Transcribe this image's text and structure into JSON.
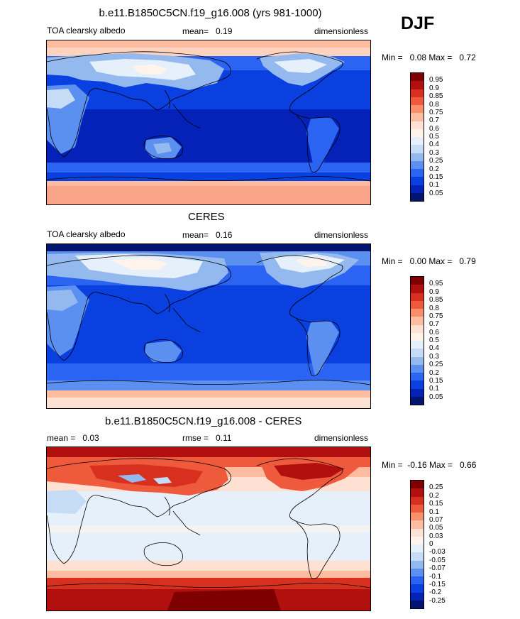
{
  "season": "DJF",
  "panels": [
    {
      "id": "model",
      "title": "b.e11.B1850C5CN.f19_g16.008 (yrs 981-1000)",
      "left_label": "TOA clearsky albedo",
      "center_label": "mean=   0.19",
      "right_label": "dimensionless",
      "minmax": "Min =   0.08 Max =   0.72",
      "colorbar": {
        "labels": [
          "0.95",
          "0.9",
          "0.85",
          "0.8",
          "0.75",
          "0.7",
          "0.6",
          "0.5",
          "0.4",
          "0.3",
          "0.25",
          "0.2",
          "0.15",
          "0.1",
          "0.05"
        ],
        "colors": [
          "#7f0000",
          "#b20f0f",
          "#d7301f",
          "#ef5a3c",
          "#f98e6b",
          "#fdbba0",
          "#fee1d3",
          "#fff3ec",
          "#e6f0fb",
          "#c6dbf5",
          "#93b9ee",
          "#5b8ff0",
          "#2b63f2",
          "#0a3fe0",
          "#0522b8",
          "#001470"
        ]
      },
      "chart_data": {
        "type": "heatmap",
        "title": "b.e11.B1850C5CN.f19_g16.008 (yrs 981-1000)",
        "variable": "TOA clearsky albedo",
        "units": "dimensionless",
        "mean": 0.19,
        "min": 0.08,
        "max": 0.72,
        "levels": [
          0.05,
          0.1,
          0.15,
          0.2,
          0.25,
          0.3,
          0.4,
          0.5,
          0.6,
          0.7,
          0.75,
          0.8,
          0.85,
          0.9,
          0.95
        ]
      }
    },
    {
      "id": "obs",
      "title": "CERES",
      "left_label": "TOA clearsky albedo",
      "center_label": "mean=   0.16",
      "right_label": "dimensionless",
      "minmax": "Min =   0.00 Max =   0.79",
      "colorbar": {
        "labels": [
          "0.95",
          "0.9",
          "0.85",
          "0.8",
          "0.75",
          "0.7",
          "0.6",
          "0.5",
          "0.4",
          "0.3",
          "0.25",
          "0.2",
          "0.15",
          "0.1",
          "0.05"
        ],
        "colors": [
          "#7f0000",
          "#b20f0f",
          "#d7301f",
          "#ef5a3c",
          "#f98e6b",
          "#fdbba0",
          "#fee1d3",
          "#fff3ec",
          "#e6f0fb",
          "#c6dbf5",
          "#93b9ee",
          "#5b8ff0",
          "#2b63f2",
          "#0a3fe0",
          "#0522b8",
          "#001470"
        ]
      },
      "chart_data": {
        "type": "heatmap",
        "title": "CERES",
        "variable": "TOA clearsky albedo",
        "units": "dimensionless",
        "mean": 0.16,
        "min": 0.0,
        "max": 0.79,
        "levels": [
          0.05,
          0.1,
          0.15,
          0.2,
          0.25,
          0.3,
          0.4,
          0.5,
          0.6,
          0.7,
          0.75,
          0.8,
          0.85,
          0.9,
          0.95
        ]
      }
    },
    {
      "id": "diff",
      "title": "b.e11.B1850C5CN.f19_g16.008 - CERES",
      "left_label": "mean =   0.03",
      "center_label": "rmse =   0.11",
      "right_label": "dimensionless",
      "minmax": "Min =  -0.16 Max =   0.66",
      "colorbar": {
        "labels": [
          "0.25",
          "0.2",
          "0.15",
          "0.1",
          "0.07",
          "0.05",
          "0.03",
          "0",
          "-0.03",
          "-0.05",
          "-0.07",
          "-0.1",
          "-0.15",
          "-0.2",
          "-0.25"
        ],
        "colors": [
          "#7f0000",
          "#b20f0f",
          "#d7301f",
          "#ef5a3c",
          "#f98e6b",
          "#fdbba0",
          "#fee1d3",
          "#fff3ec",
          "#e6f0fb",
          "#c6dbf5",
          "#93b9ee",
          "#5b8ff0",
          "#2b63f2",
          "#0a3fe0",
          "#0522b8",
          "#001470"
        ]
      },
      "chart_data": {
        "type": "heatmap",
        "title": "b.e11.B1850C5CN.f19_g16.008 - CERES",
        "units": "dimensionless",
        "mean": 0.03,
        "rmse": 0.11,
        "min": -0.16,
        "max": 0.66,
        "levels": [
          -0.25,
          -0.2,
          -0.15,
          -0.1,
          -0.07,
          -0.05,
          -0.03,
          0,
          0.03,
          0.05,
          0.07,
          0.1,
          0.15,
          0.2,
          0.25
        ]
      }
    }
  ]
}
